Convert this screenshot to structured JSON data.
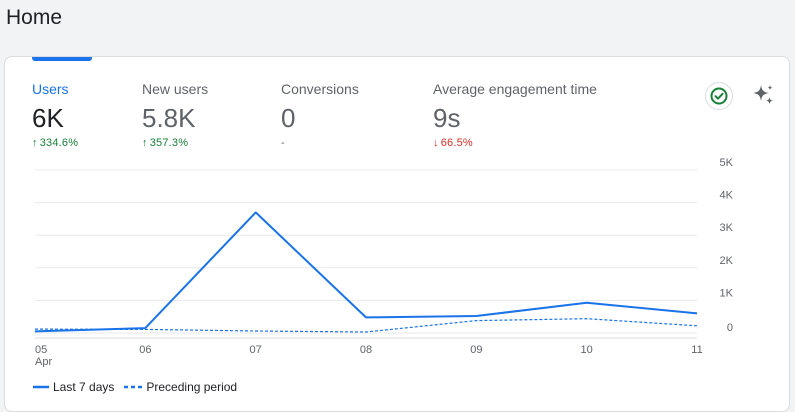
{
  "page": {
    "title": "Home"
  },
  "metrics": [
    {
      "label": "Users",
      "value": "6K",
      "change": "334.6%",
      "direction": "up",
      "active": true
    },
    {
      "label": "New users",
      "value": "5.8K",
      "change": "357.3%",
      "direction": "up",
      "active": false
    },
    {
      "label": "Conversions",
      "value": "0",
      "change": "-",
      "direction": "none",
      "active": false
    },
    {
      "label": "Average engagement time",
      "value": "9s",
      "change": "66.5%",
      "direction": "down",
      "active": false
    }
  ],
  "icons": {
    "insights": "check-circle-icon",
    "ai": "sparkle-icon"
  },
  "colors": {
    "accent": "#1a73e8",
    "up": "#188038",
    "down": "#d93025"
  },
  "chart_data": {
    "type": "line",
    "categories": [
      "05",
      "06",
      "07",
      "08",
      "09",
      "10",
      "11"
    ],
    "category_sublabels": [
      "Apr",
      "",
      "",
      "",
      "",
      "",
      ""
    ],
    "series": [
      {
        "name": "Last 7 days",
        "style": "solid",
        "color": "#1a73e8",
        "values": [
          50,
          150,
          3700,
          480,
          520,
          930,
          600
        ]
      },
      {
        "name": "Preceding period",
        "style": "dashed",
        "color": "#1a73e8",
        "values": [
          120,
          110,
          60,
          30,
          380,
          440,
          220
        ]
      }
    ],
    "yticks": [
      "0",
      "1K",
      "2K",
      "3K",
      "4K",
      "5K"
    ],
    "yticks_values": [
      0,
      1000,
      2000,
      3000,
      4000,
      5000
    ],
    "ylim": [
      0,
      5000
    ],
    "y_axis_position": "right",
    "grid": true,
    "legend_position": "bottom-left"
  }
}
